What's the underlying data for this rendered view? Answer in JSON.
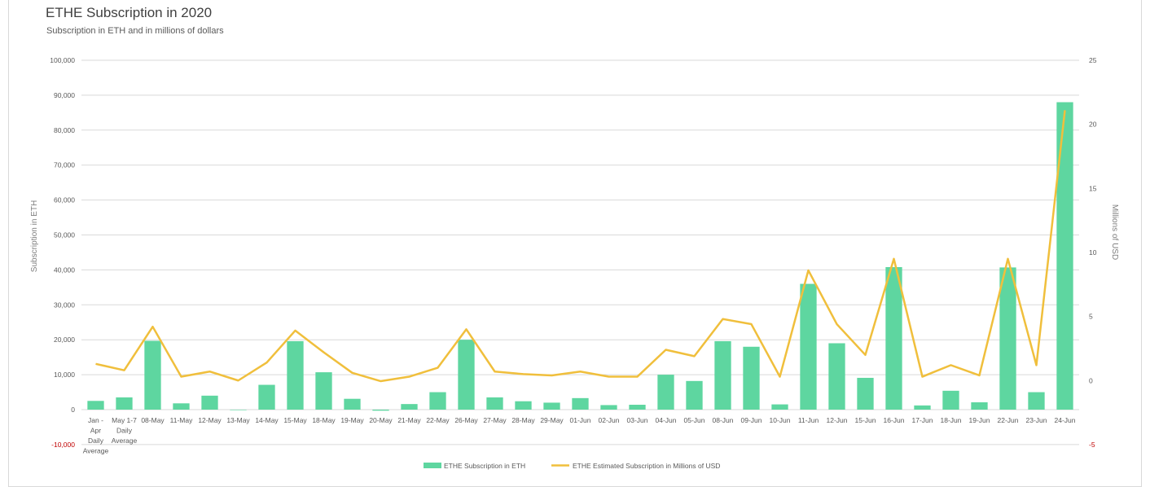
{
  "chart_data": {
    "type": "bar",
    "title": "ETHE Subscription in 2020",
    "subtitle": "Subscription in ETH and in millions of dollars",
    "ylabel": "Subscription in ETH",
    "y2label": "Millions of USD",
    "ylim": [
      -10000,
      100000
    ],
    "y2lim": [
      -5,
      25
    ],
    "yticks": [
      -10000,
      0,
      10000,
      20000,
      30000,
      40000,
      50000,
      60000,
      70000,
      80000,
      90000,
      100000
    ],
    "y2ticks": [
      -5,
      0,
      5,
      10,
      15,
      20,
      25
    ],
    "grid": true,
    "legend": "bottom",
    "categories": [
      [
        "Jan -",
        "Apr",
        "Daily",
        "Average"
      ],
      [
        "May 1-7",
        "Daily",
        "Average"
      ],
      [
        "08-May"
      ],
      [
        "11-May"
      ],
      [
        "12-May"
      ],
      [
        "13-May"
      ],
      [
        "14-May"
      ],
      [
        "15-May"
      ],
      [
        "18-May"
      ],
      [
        "19-May"
      ],
      [
        "20-May"
      ],
      [
        "21-May"
      ],
      [
        "22-May"
      ],
      [
        "26-May"
      ],
      [
        "27-May"
      ],
      [
        "28-May"
      ],
      [
        "29-May"
      ],
      [
        "01-Jun"
      ],
      [
        "02-Jun"
      ],
      [
        "03-Jun"
      ],
      [
        "04-Jun"
      ],
      [
        "05-Jun"
      ],
      [
        "08-Jun"
      ],
      [
        "09-Jun"
      ],
      [
        "10-Jun"
      ],
      [
        "11-Jun"
      ],
      [
        "12-Jun"
      ],
      [
        "15-Jun"
      ],
      [
        "16-Jun"
      ],
      [
        "17-Jun"
      ],
      [
        "18-Jun"
      ],
      [
        "19-Jun"
      ],
      [
        "22-Jun"
      ],
      [
        "23-Jun"
      ],
      [
        "24-Jun"
      ]
    ],
    "series": [
      {
        "name": "ETHE Subscription in ETH",
        "type": "bar",
        "axis": "left",
        "color": "#5ed6a0",
        "values": [
          2500,
          3500,
          19700,
          1800,
          4000,
          0,
          7100,
          19600,
          10700,
          3100,
          -300,
          1600,
          5000,
          20000,
          3500,
          2400,
          2000,
          3300,
          1300,
          1400,
          10000,
          8200,
          19600,
          18000,
          1500,
          36000,
          19000,
          9100,
          40800,
          1200,
          5400,
          2100,
          40700,
          5000,
          88000
        ]
      },
      {
        "name": "ETHE Estimated Subscription in Millions of USD",
        "type": "line",
        "axis": "right",
        "color": "#f0bf3c",
        "values": [
          1.3,
          0.8,
          4.2,
          0.3,
          0.7,
          0.0,
          1.4,
          3.9,
          2.2,
          0.6,
          -0.05,
          0.3,
          1.0,
          4.0,
          0.7,
          0.5,
          0.4,
          0.7,
          0.3,
          0.3,
          2.4,
          1.9,
          4.8,
          4.4,
          0.3,
          8.6,
          4.4,
          2.0,
          9.5,
          0.3,
          1.2,
          0.4,
          9.5,
          1.2,
          21.1
        ]
      }
    ]
  },
  "colors": {
    "negative_tick": "#c00000",
    "grid": "#d9d9d9"
  }
}
